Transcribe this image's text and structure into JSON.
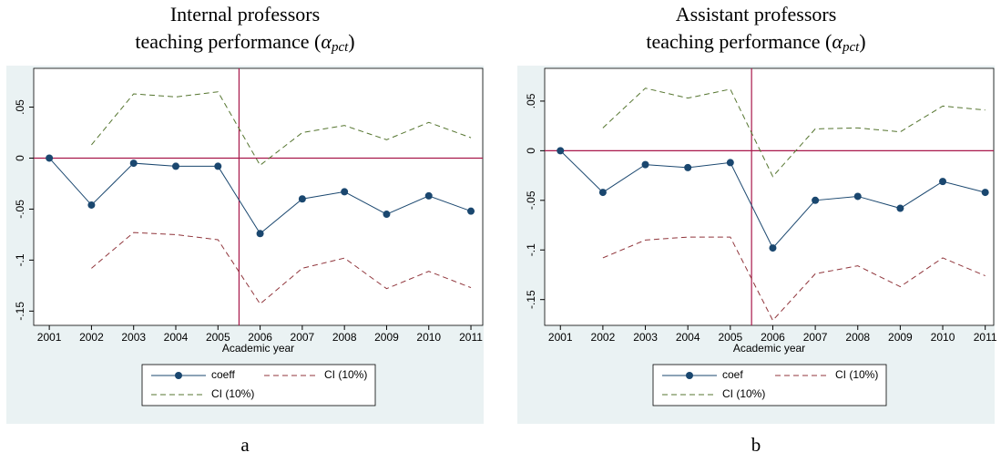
{
  "chart_data": [
    {
      "type": "line",
      "title": [
        "Internal professors",
        "teaching performance ("
      ],
      "title_symbol": "α",
      "title_subscript": "pct",
      "title_end": ")",
      "caption": "a",
      "xlabel": "Academic year",
      "x": [
        2001,
        2002,
        2003,
        2004,
        2005,
        2006,
        2007,
        2008,
        2009,
        2010,
        2011
      ],
      "xlim": [
        2000.63,
        2011.28
      ],
      "xticks": [
        2001,
        2002,
        2003,
        2004,
        2005,
        2006,
        2007,
        2008,
        2009,
        2010,
        2011
      ],
      "ylim": [
        -0.164,
        0.088
      ],
      "yticks": [
        {
          "value": 0.05,
          "label": ".05"
        },
        0,
        {
          "value": -0.05,
          "label": "-.05"
        },
        {
          "value": -0.1,
          "label": "-.1"
        },
        {
          "value": -0.15,
          "label": "-.15"
        }
      ],
      "xline": 2005.5,
      "yline": 0,
      "refline_color": "#a8174a",
      "series": [
        {
          "name": "coeff",
          "color": "#1a476f",
          "dashed": false,
          "markers": true,
          "values": [
            0,
            -0.046,
            -0.005,
            -0.008,
            -0.008,
            -0.074,
            -0.04,
            -0.033,
            -0.055,
            -0.037,
            -0.052
          ]
        },
        {
          "name": "CI (10%)",
          "color": "#90353b",
          "dashed": true,
          "markers": false,
          "values": [
            null,
            -0.108,
            -0.073,
            -0.075,
            -0.08,
            -0.143,
            -0.108,
            -0.098,
            -0.128,
            -0.111,
            -0.127
          ]
        },
        {
          "name": "CI (10%)",
          "color": "#55752f",
          "dashed": true,
          "markers": false,
          "values": [
            null,
            0.013,
            0.063,
            0.06,
            0.065,
            -0.007,
            0.025,
            0.032,
            0.018,
            0.035,
            0.02
          ]
        }
      ]
    },
    {
      "type": "line",
      "title": [
        "Assistant professors",
        "teaching performance ("
      ],
      "title_symbol": "α",
      "title_subscript": "pct",
      "title_end": ")",
      "caption": "b",
      "xlabel": "Academic year",
      "x": [
        2001,
        2002,
        2003,
        2004,
        2005,
        2006,
        2007,
        2008,
        2009,
        2010,
        2011
      ],
      "xlim": [
        2000.63,
        2011.2
      ],
      "xticks": [
        2001,
        2002,
        2003,
        2004,
        2005,
        2006,
        2007,
        2008,
        2009,
        2010,
        2011
      ],
      "ylim": [
        -0.176,
        0.083
      ],
      "yticks": [
        {
          "value": 0.05,
          "label": ".05"
        },
        0,
        {
          "value": -0.05,
          "label": "-.05"
        },
        {
          "value": -0.1,
          "label": "-.1"
        },
        {
          "value": -0.15,
          "label": "-.15"
        }
      ],
      "xline": 2005.5,
      "yline": 0,
      "refline_color": "#a8174a",
      "series": [
        {
          "name": "coef",
          "color": "#1a476f",
          "dashed": false,
          "markers": true,
          "values": [
            0,
            -0.042,
            -0.014,
            -0.017,
            -0.012,
            -0.098,
            -0.05,
            -0.046,
            -0.058,
            -0.031,
            -0.042
          ]
        },
        {
          "name": "CI (10%)",
          "color": "#90353b",
          "dashed": true,
          "markers": false,
          "values": [
            null,
            -0.108,
            -0.09,
            -0.087,
            -0.087,
            -0.171,
            -0.124,
            -0.116,
            -0.137,
            -0.108,
            -0.126
          ]
        },
        {
          "name": "CI (10%)",
          "color": "#55752f",
          "dashed": true,
          "markers": false,
          "values": [
            null,
            0.023,
            0.063,
            0.053,
            0.062,
            -0.026,
            0.022,
            0.023,
            0.019,
            0.045,
            0.041
          ]
        }
      ]
    }
  ]
}
